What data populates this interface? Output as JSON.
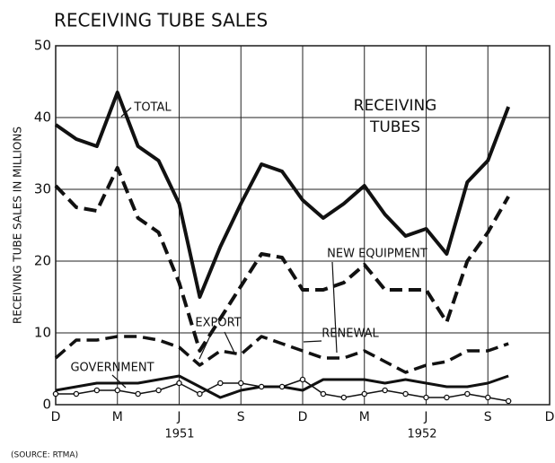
{
  "chart_data": {
    "type": "line",
    "title": "RECEIVING TUBE SALES",
    "y_label": "RECEIVING TUBE SALES IN MILLIONS",
    "source": "(SOURCE: RTMA)",
    "years": [
      "1951",
      "1952"
    ],
    "annotations": [
      "TOTAL",
      "RECEIVING",
      "TUBES",
      "NEW EQUIPMENT",
      "EXPORT",
      "RENEWAL",
      "GOVERNMENT"
    ],
    "categories": [
      "D",
      null,
      null,
      "M",
      null,
      null,
      "J",
      null,
      null,
      "S",
      null,
      null,
      "D",
      null,
      null,
      "M",
      null,
      null,
      "J",
      null,
      null,
      "S",
      null,
      null,
      "D"
    ],
    "ylim": [
      0,
      50
    ],
    "yticks": [
      0,
      10,
      20,
      30,
      40,
      50
    ],
    "grid": true,
    "series": [
      {
        "name": "TOTAL",
        "color": "#111111",
        "style": "solid",
        "width": 4,
        "values": [
          39,
          37,
          36,
          43.5,
          36,
          34,
          28,
          15,
          22,
          28,
          33.5,
          32.5,
          28.5,
          26,
          28,
          30.5,
          26.5,
          23.5,
          24.5,
          21,
          31,
          34,
          41.5,
          null,
          null
        ]
      },
      {
        "name": "NEW EQUIPMENT",
        "color": "#111111",
        "style": "dashed",
        "width": 4,
        "values": [
          30.5,
          27.5,
          27,
          33,
          26,
          24,
          17,
          7.5,
          12,
          16.5,
          21,
          20.5,
          16,
          16,
          17,
          19.5,
          16,
          16,
          16,
          11.5,
          20,
          24,
          29,
          null,
          null
        ]
      },
      {
        "name": "RENEWAL",
        "color": "#111111",
        "style": "dashed",
        "width": 3.5,
        "values": [
          6.5,
          9,
          9,
          9.5,
          9.5,
          9,
          8,
          5.5,
          7.5,
          7,
          9.5,
          8.5,
          7.5,
          6.5,
          6.5,
          7.5,
          6,
          4.5,
          5.5,
          6,
          7.5,
          7.5,
          8.5,
          null,
          null
        ]
      },
      {
        "name": "GOVERNMENT",
        "color": "#111111",
        "style": "solid",
        "width": 3,
        "values": [
          2,
          2.5,
          3,
          3,
          3,
          3.5,
          4,
          2.5,
          1,
          2,
          2.5,
          2.5,
          2,
          3.5,
          3.5,
          3.5,
          3,
          3.5,
          3,
          2.5,
          2.5,
          3,
          4,
          null,
          null
        ]
      },
      {
        "name": "EXPORT",
        "color": "#111111",
        "style": "circles",
        "width": 1.5,
        "values": [
          1.5,
          1.5,
          2,
          2,
          1.5,
          2,
          3,
          1.5,
          3,
          3,
          2.5,
          2.5,
          3.5,
          1.5,
          1,
          1.5,
          2,
          1.5,
          1,
          1,
          1.5,
          1,
          0.5,
          null,
          null
        ]
      }
    ]
  }
}
